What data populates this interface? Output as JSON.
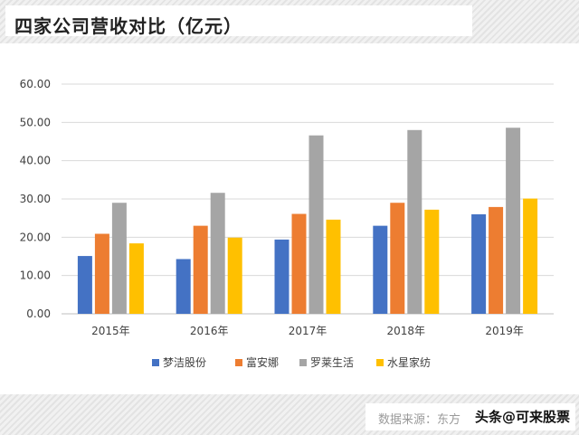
{
  "title": "四家公司营收对比（亿元）",
  "source": "数据来源：东方",
  "watermark": "头条@可来股票",
  "chart_data": {
    "type": "bar",
    "categories": [
      "2015年",
      "2016年",
      "2017年",
      "2018年",
      "2019年"
    ],
    "series": [
      {
        "name": "梦洁股份",
        "color": "#4472C4",
        "values": [
          15.1,
          14.3,
          19.4,
          23.0,
          26.0
        ]
      },
      {
        "name": "富安娜",
        "color": "#ED7D31",
        "values": [
          20.9,
          23.0,
          26.1,
          29.0,
          27.9
        ]
      },
      {
        "name": "罗莱生活",
        "color": "#A5A5A5",
        "values": [
          29.0,
          31.6,
          46.6,
          48.0,
          48.6
        ]
      },
      {
        "name": "水星家纺",
        "color": "#FFC000",
        "values": [
          18.4,
          19.9,
          24.6,
          27.2,
          30.1
        ]
      }
    ],
    "ylim": [
      0,
      60
    ],
    "yticks": [
      "0.00",
      "10.00",
      "20.00",
      "30.00",
      "40.00",
      "50.00",
      "60.00"
    ],
    "grid": true,
    "legend": "bottom"
  }
}
